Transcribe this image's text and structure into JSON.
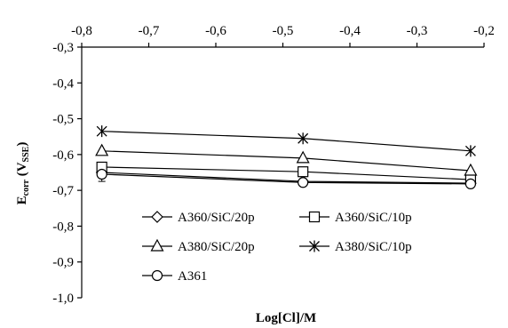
{
  "chart_data": {
    "type": "line",
    "xlabel": "Log[Cl]/M",
    "ylabel_main": "E",
    "ylabel_sub": "corr",
    "ylabel_units": " (V",
    "ylabel_units_sub": "SSE",
    "ylabel_units_end": ")",
    "xlim": [
      -0.8,
      -0.2
    ],
    "ylim": [
      -1.0,
      -0.3
    ],
    "x_ticks": [
      "-0,8",
      "-0,7",
      "-0,6",
      "-0,5",
      "-0,4",
      "-0,3",
      "-0,2"
    ],
    "y_ticks": [
      "-0,3",
      "-0,4",
      "-0,5",
      "-0,6",
      "-0,7",
      "-0,8",
      "-0,9",
      "-1,0"
    ],
    "x": [
      -0.77,
      -0.47,
      -0.22
    ],
    "grid": false,
    "x_axis_position": "top",
    "legend_position": "bottom-center",
    "series": [
      {
        "name": "A360/SiC/20p",
        "marker": "diamond",
        "values": [
          -0.65,
          -0.675,
          -0.68
        ]
      },
      {
        "name": "A360/SiC/10p",
        "marker": "square",
        "values": [
          -0.635,
          -0.648,
          -0.67
        ]
      },
      {
        "name": "A380/SiC/20p",
        "marker": "triangle",
        "values": [
          -0.59,
          -0.61,
          -0.645
        ]
      },
      {
        "name": "A380/SiC/10p",
        "marker": "star",
        "values": [
          -0.535,
          -0.555,
          -0.59
        ]
      },
      {
        "name": "A361",
        "marker": "circle",
        "values": [
          -0.655,
          -0.678,
          -0.682
        ]
      }
    ],
    "error_bar": {
      "series": "A361",
      "x": -0.77,
      "low": -0.675,
      "high": -0.635
    }
  }
}
